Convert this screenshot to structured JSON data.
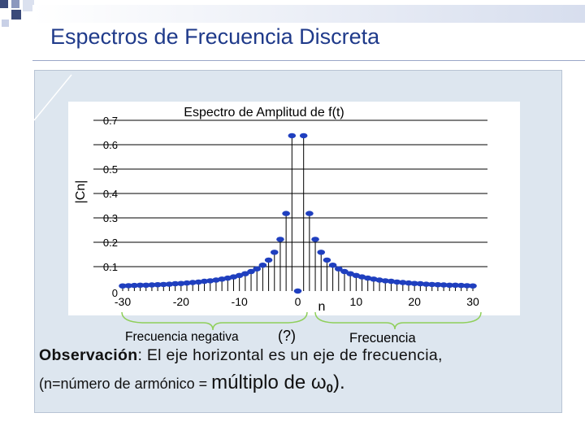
{
  "slide": {
    "title": "Espectros de Frecuencia Discreta"
  },
  "chart_data": {
    "type": "scatter",
    "title": "Espectro de Amplitud de f(t)",
    "ylabel": "|Cn|",
    "xlabel": "n",
    "xlim": [
      -30,
      30
    ],
    "ylim": [
      0,
      0.7
    ],
    "xticks": [
      "-30",
      "-20",
      "-10",
      "0",
      "10",
      "20",
      "30"
    ],
    "yticks": [
      "0",
      "0.1",
      "0.2",
      "0.3",
      "0.4",
      "0.5",
      "0.6",
      "0.7"
    ],
    "grid": true,
    "stems": true,
    "color": "#1f3fbf",
    "x": [
      -30,
      -29,
      -28,
      -27,
      -26,
      -25,
      -24,
      -23,
      -22,
      -21,
      -20,
      -19,
      -18,
      -17,
      -16,
      -15,
      -14,
      -13,
      -12,
      -11,
      -10,
      -9,
      -8,
      -7,
      -6,
      -5,
      -4,
      -3,
      -2,
      -1,
      0,
      1,
      2,
      3,
      4,
      5,
      6,
      7,
      8,
      9,
      10,
      11,
      12,
      13,
      14,
      15,
      16,
      17,
      18,
      19,
      20,
      21,
      22,
      23,
      24,
      25,
      26,
      27,
      28,
      29,
      30
    ],
    "y": [
      0.021,
      0.022,
      0.023,
      0.024,
      0.024,
      0.025,
      0.026,
      0.027,
      0.028,
      0.03,
      0.031,
      0.033,
      0.035,
      0.037,
      0.04,
      0.042,
      0.045,
      0.049,
      0.053,
      0.058,
      0.064,
      0.071,
      0.08,
      0.091,
      0.106,
      0.127,
      0.159,
      0.212,
      0.318,
      0.637,
      0,
      0.637,
      0.318,
      0.212,
      0.159,
      0.127,
      0.106,
      0.091,
      0.08,
      0.071,
      0.064,
      0.058,
      0.053,
      0.049,
      0.045,
      0.042,
      0.04,
      0.037,
      0.035,
      0.033,
      0.031,
      0.03,
      0.028,
      0.027,
      0.026,
      0.025,
      0.024,
      0.024,
      0.023,
      0.022,
      0.021
    ]
  },
  "annotations": {
    "negative_freq_label": "Frecuencia negativa",
    "negative_freq_mark": "(?)",
    "positive_freq_label": "Frecuencia"
  },
  "observation": {
    "label": "Observación",
    "line1": ": El eje horizontal es un eje de frecuencia,",
    "line2_start": "(n=número de armónico = ",
    "line2_big": "múltiplo de ",
    "omega": "ω",
    "omega_sub": "0",
    "line2_end": ")."
  },
  "colors": {
    "title": "#1f3a8a",
    "marker": "#1f3fbf",
    "panel": "#dde6ef"
  }
}
